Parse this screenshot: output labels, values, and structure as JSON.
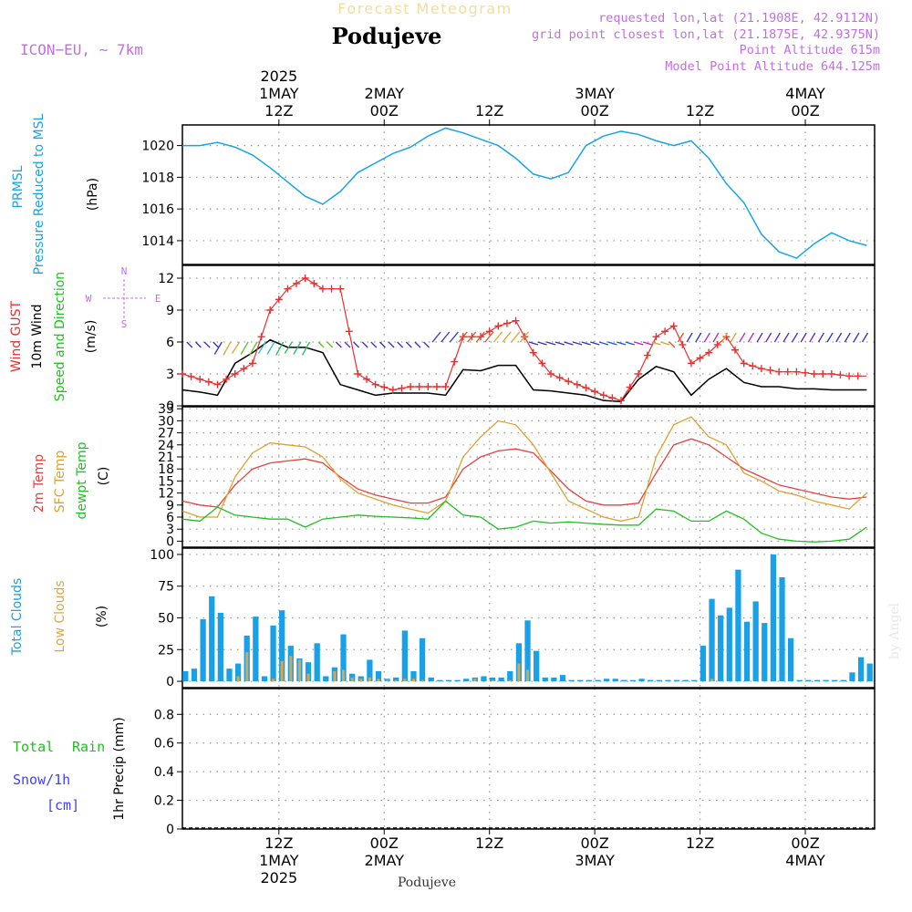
{
  "header": {
    "title_faded": "Forecast Meteogram",
    "location": "Podujeve",
    "model": "ICON−EU, ∼ 7km",
    "requested": "requested lon,lat (21.1908E, 42.9112N)",
    "grid_point": "grid point closest lon,lat (21.1875E, 42.9375N)",
    "point_alt": "Point Altitude 615m",
    "model_alt": "Model Point Altitude 644.125m",
    "signature": "by Angel",
    "footer_location": "Podujeve"
  },
  "colors": {
    "pressure": "#18a4e8",
    "gust": "#e83030",
    "wind": "#000000",
    "temp2m": "#e84040",
    "sfc": "#e0a030",
    "dewpt": "#20c020",
    "total_clouds": "#18a0e8",
    "low_clouds": "#d8a848",
    "axis_purple": "#c070e0",
    "label_green": "#20c020",
    "label_blue": "#4040ff"
  },
  "chart_data": [
    {
      "type": "line",
      "panel": "pressure",
      "ylabel_lines": [
        "PRMSL",
        "Pressure Reduced to MSL"
      ],
      "unit": "(hPa)",
      "ylim": [
        1012.5,
        1021.3
      ],
      "yticks": [
        1014,
        1016,
        1018,
        1020
      ],
      "x_hours": [
        0,
        2,
        4,
        6,
        8,
        10,
        12,
        14,
        16,
        18,
        20,
        22,
        24,
        26,
        28,
        30,
        32,
        34,
        36,
        38,
        40,
        42,
        44,
        46,
        48,
        50,
        52,
        54,
        56,
        58,
        60,
        62,
        64,
        66,
        68,
        70,
        72,
        74,
        76,
        78
      ],
      "series": [
        {
          "name": "PRMSL",
          "values": [
            1020.0,
            1020.0,
            1020.2,
            1019.9,
            1019.4,
            1018.6,
            1017.7,
            1016.8,
            1016.3,
            1017.1,
            1018.3,
            1018.9,
            1019.5,
            1019.9,
            1020.6,
            1021.1,
            1020.8,
            1020.4,
            1020.0,
            1019.2,
            1018.2,
            1017.9,
            1018.3,
            1020.0,
            1020.6,
            1020.9,
            1020.7,
            1020.3,
            1020.0,
            1020.3,
            1019.2,
            1017.6,
            1016.4,
            1014.4,
            1013.3,
            1012.9,
            1013.8,
            1014.5,
            1014.0,
            1013.7
          ]
        }
      ]
    },
    {
      "type": "line",
      "panel": "wind",
      "ylabel_lines": [
        "Wind GUST",
        "10m Wind",
        "Speed and Direction"
      ],
      "unit": "(m/s)",
      "compass": {
        "n": "N",
        "s": "S",
        "e": "E",
        "w": "W"
      },
      "ylim": [
        0,
        13.2
      ],
      "yticks": [
        0,
        3,
        6,
        9,
        12
      ],
      "x_hours": [
        0,
        2,
        4,
        6,
        8,
        10,
        12,
        14,
        16,
        18,
        20,
        22,
        24,
        26,
        28,
        30,
        32,
        34,
        36,
        38,
        40,
        42,
        44,
        46,
        48,
        50,
        52,
        54,
        56,
        58,
        60,
        62,
        64,
        66,
        68,
        70,
        72,
        74,
        76,
        78
      ],
      "series": [
        {
          "name": "Wind GUST",
          "values": [
            3.0,
            2.5,
            2.0,
            3.0,
            4.0,
            9.0,
            11.0,
            12.0,
            11.0,
            11.0,
            3.0,
            2.0,
            1.5,
            1.8,
            1.8,
            1.8,
            6.5,
            6.5,
            7.5,
            8.0,
            5.0,
            3.0,
            2.3,
            1.7,
            1.0,
            0.5,
            3.0,
            6.5,
            7.5,
            4.0,
            5.0,
            6.5,
            4.0,
            3.5,
            3.2,
            3.2,
            3.0,
            3.0,
            2.8,
            2.8
          ]
        },
        {
          "name": "10m Wind",
          "values": [
            1.5,
            1.3,
            1.0,
            4.0,
            5.0,
            6.2,
            5.5,
            5.5,
            5.0,
            2.0,
            1.5,
            1.0,
            1.2,
            1.2,
            1.2,
            1.0,
            3.4,
            3.3,
            3.8,
            3.8,
            1.5,
            1.4,
            1.2,
            1.0,
            0.5,
            0.4,
            2.5,
            3.7,
            3.2,
            1.0,
            2.5,
            3.5,
            2.2,
            1.8,
            1.8,
            1.6,
            1.6,
            1.5,
            1.5,
            1.5
          ]
        }
      ]
    },
    {
      "type": "line",
      "panel": "temperature",
      "ylabel_lines": [
        "2m Temp",
        "SFC Temp",
        "dewpt Temp"
      ],
      "unit": "(C)",
      "ylim": [
        -1.5,
        33.5
      ],
      "yticks": [
        0,
        3,
        6,
        9,
        12,
        15,
        18,
        21,
        24,
        27,
        30,
        33
      ],
      "x_hours": [
        0,
        2,
        4,
        6,
        8,
        10,
        12,
        14,
        16,
        18,
        20,
        22,
        24,
        26,
        28,
        30,
        32,
        34,
        36,
        38,
        40,
        42,
        44,
        46,
        48,
        50,
        52,
        54,
        56,
        58,
        60,
        62,
        64,
        66,
        68,
        70,
        72,
        74,
        76,
        78
      ],
      "series": [
        {
          "name": "2m Temp",
          "values": [
            10.0,
            9.0,
            8.5,
            14.0,
            18.0,
            19.5,
            20.0,
            20.5,
            19.5,
            16.0,
            13.0,
            11.5,
            10.5,
            9.5,
            9.5,
            11.0,
            18.0,
            21.0,
            22.5,
            23.0,
            22.0,
            17.5,
            13.0,
            10.0,
            9.0,
            9.0,
            9.5,
            17.0,
            24.0,
            25.5,
            24.0,
            21.0,
            18.0,
            16.0,
            14.0,
            13.0,
            12.0,
            11.0,
            10.5,
            11.0
          ]
        },
        {
          "name": "SFC Temp",
          "values": [
            7.5,
            6.0,
            6.0,
            16.0,
            22.0,
            24.5,
            24.0,
            23.5,
            21.0,
            15.5,
            12.0,
            10.5,
            9.0,
            8.0,
            7.0,
            10.0,
            21.0,
            26.0,
            30.0,
            29.0,
            24.0,
            17.0,
            10.0,
            8.0,
            6.0,
            5.0,
            6.0,
            21.0,
            29.0,
            31.0,
            26.0,
            24.0,
            17.0,
            15.0,
            12.5,
            11.5,
            10.0,
            9.0,
            8.0,
            12.0
          ]
        },
        {
          "name": "dewpt Temp",
          "values": [
            5.5,
            5.0,
            8.5,
            6.5,
            6.0,
            5.5,
            5.5,
            3.5,
            5.5,
            6.0,
            6.5,
            6.2,
            6.0,
            5.8,
            5.5,
            10.0,
            6.5,
            6.0,
            3.0,
            3.5,
            5.0,
            4.5,
            4.8,
            4.5,
            4.2,
            4.0,
            4.0,
            8.0,
            7.5,
            5.0,
            5.0,
            7.5,
            5.5,
            2.0,
            0.5,
            0.0,
            -0.2,
            0.0,
            0.5,
            3.5
          ]
        }
      ]
    },
    {
      "type": "bar",
      "panel": "clouds",
      "ylabel_lines": [
        "Total Clouds",
        "Low Clouds"
      ],
      "unit": "(%)",
      "ylim": [
        -5,
        105
      ],
      "yticks": [
        0,
        25,
        50,
        75,
        100
      ],
      "x_hours": [
        0,
        1,
        2,
        3,
        4,
        5,
        6,
        7,
        8,
        9,
        10,
        11,
        12,
        13,
        14,
        15,
        16,
        17,
        18,
        19,
        20,
        21,
        22,
        23,
        24,
        25,
        26,
        27,
        28,
        29,
        30,
        31,
        32,
        33,
        34,
        35,
        36,
        37,
        38,
        39,
        40,
        41,
        42,
        43,
        44,
        45,
        46,
        47,
        48,
        49,
        50,
        51,
        52,
        53,
        54,
        55,
        56,
        57,
        58,
        59,
        60,
        61,
        62,
        63,
        64,
        65,
        66,
        67,
        68,
        69,
        70,
        71,
        72,
        73,
        74,
        75,
        76,
        77,
        78
      ],
      "series": [
        {
          "name": "Total Clouds",
          "values": [
            8,
            10,
            49,
            67,
            54,
            10,
            14,
            36,
            51,
            4,
            44,
            56,
            28,
            18,
            15,
            30,
            4,
            11,
            37,
            6,
            4,
            17,
            8,
            2,
            3,
            40,
            8,
            34,
            3,
            1,
            1,
            1,
            2,
            3,
            4,
            3,
            3,
            8,
            30,
            48,
            24,
            3,
            3,
            5,
            1,
            1,
            1,
            1,
            2,
            2,
            1,
            1,
            2,
            1,
            1,
            1,
            1,
            1,
            1,
            28,
            65,
            52,
            58,
            88,
            47,
            63,
            46,
            100,
            82,
            34,
            1,
            1,
            1,
            1,
            1,
            1,
            7,
            19,
            14
          ]
        },
        {
          "name": "Low Clouds",
          "values": [
            0,
            0,
            0,
            0,
            0,
            0,
            4,
            23,
            0,
            0,
            2,
            16,
            20,
            17,
            6,
            0,
            0,
            8,
            9,
            3,
            2,
            3,
            2,
            1,
            1,
            2,
            2,
            1,
            0,
            0,
            0,
            0,
            0,
            2,
            0,
            1,
            0,
            1,
            14,
            9,
            0,
            0,
            0,
            0,
            0,
            0,
            0,
            0,
            0,
            0,
            0,
            0,
            0,
            0,
            0,
            0,
            0,
            0,
            0,
            0,
            2,
            0,
            0,
            0,
            0,
            0,
            0,
            0,
            0,
            0,
            0,
            0,
            0,
            0,
            0,
            0,
            0,
            0,
            0
          ]
        }
      ]
    },
    {
      "type": "line",
      "panel": "precip",
      "ylabel_lines": [
        "1hr Precip (mm)"
      ],
      "legend": {
        "total": "Total",
        "rain": "Rain",
        "snow": "Snow/1h",
        "cm": "[cm]"
      },
      "ylim": [
        0,
        0.98
      ],
      "yticks": [
        "0",
        "0.2",
        "0.4",
        "0.6",
        "0.8"
      ],
      "series": [
        {
          "name": "Total",
          "values": [
            0,
            0
          ]
        }
      ]
    }
  ],
  "time_axis": {
    "top_ticks": [
      {
        "hour": 11,
        "lines": [
          "2025",
          "1MAY",
          "12Z"
        ]
      },
      {
        "hour": 23,
        "lines": [
          "2MAY",
          "00Z"
        ]
      },
      {
        "hour": 35,
        "lines": [
          "12Z"
        ]
      },
      {
        "hour": 47,
        "lines": [
          "3MAY",
          "00Z"
        ]
      },
      {
        "hour": 59,
        "lines": [
          "12Z"
        ]
      },
      {
        "hour": 71,
        "lines": [
          "4MAY",
          "00Z"
        ]
      }
    ],
    "bottom_ticks": [
      {
        "hour": 11,
        "lines": [
          "12Z",
          "1MAY",
          "2025"
        ]
      },
      {
        "hour": 23,
        "lines": [
          "00Z",
          "2MAY"
        ]
      },
      {
        "hour": 35,
        "lines": [
          "12Z"
        ]
      },
      {
        "hour": 47,
        "lines": [
          "00Z",
          "3MAY"
        ]
      },
      {
        "hour": 59,
        "lines": [
          "12Z"
        ]
      },
      {
        "hour": 71,
        "lines": [
          "00Z",
          "4MAY"
        ]
      }
    ]
  }
}
